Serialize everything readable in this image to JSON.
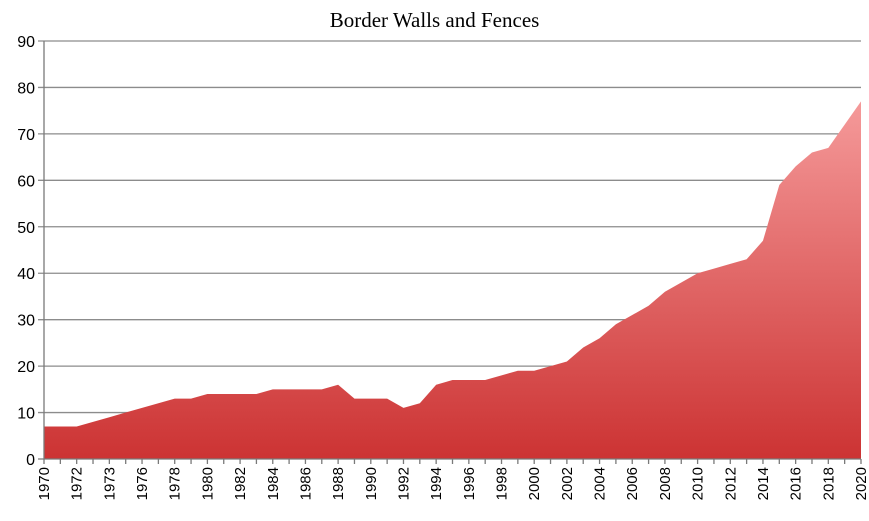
{
  "chart_data": {
    "type": "area",
    "title": "Border Walls and Fences",
    "xlabel": "",
    "ylabel": "",
    "ylim": [
      0,
      90
    ],
    "yticks": [
      0,
      10,
      20,
      30,
      40,
      50,
      60,
      70,
      80,
      90
    ],
    "grid": true,
    "legend": "none",
    "x_tick_labels": [
      "1970",
      "1972",
      "1973",
      "1976",
      "1978",
      "1980",
      "1982",
      "1984",
      "1986",
      "1988",
      "1990",
      "1992",
      "1994",
      "1996",
      "1998",
      "2000",
      "2002",
      "2004",
      "2006",
      "2008",
      "2010",
      "2012",
      "2014",
      "2016",
      "2018",
      "2020"
    ],
    "x": [
      1970,
      1971,
      1972,
      1973,
      1974,
      1975,
      1976,
      1977,
      1978,
      1979,
      1980,
      1981,
      1982,
      1983,
      1984,
      1985,
      1986,
      1987,
      1988,
      1989,
      1990,
      1991,
      1992,
      1993,
      1994,
      1995,
      1996,
      1997,
      1998,
      1999,
      2000,
      2001,
      2002,
      2003,
      2004,
      2005,
      2006,
      2007,
      2008,
      2009,
      2010,
      2011,
      2012,
      2013,
      2014,
      2015,
      2016,
      2017,
      2018,
      2019,
      2020
    ],
    "values": [
      7,
      7,
      7,
      8,
      9,
      10,
      11,
      12,
      13,
      13,
      14,
      14,
      14,
      14,
      15,
      15,
      15,
      15,
      16,
      13,
      13,
      13,
      11,
      12,
      16,
      17,
      17,
      17,
      18,
      19,
      19,
      20,
      21,
      24,
      26,
      29,
      31,
      33,
      36,
      38,
      40,
      41,
      42,
      43,
      47,
      59,
      63,
      66,
      67,
      72,
      77
    ],
    "colors": {
      "fill_top": "#f59a9a",
      "fill_bottom": "#cc3333",
      "grid": "#8c8c8c"
    }
  }
}
